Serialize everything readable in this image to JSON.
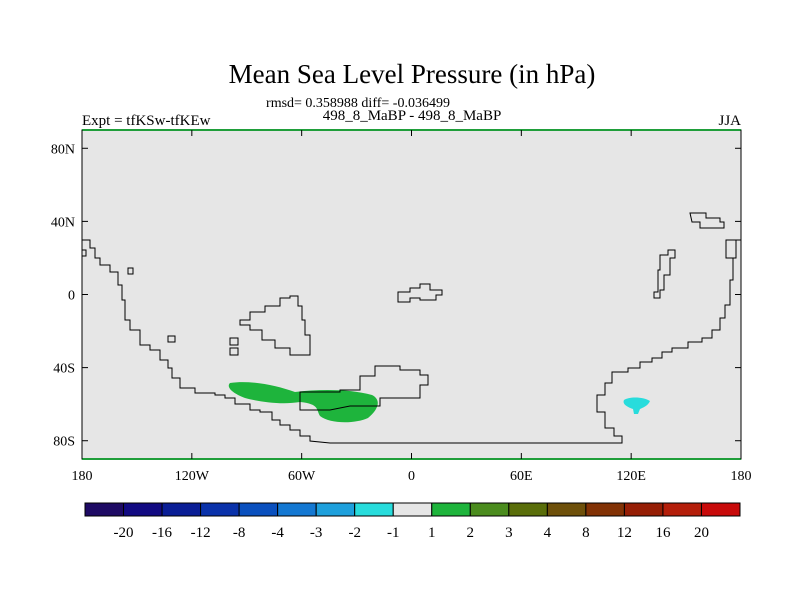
{
  "chart_data": {
    "type": "heatmap",
    "title": "Mean Sea Level Pressure (in hPa)",
    "stats_line": "rmsd= 0.358988 diff= -0.036499",
    "left_label": "Expt = tfKSw-tfKEw",
    "center_label": "498_8_MaBP - 498_8_MaBP",
    "right_label": "JJA",
    "x_axis": {
      "range_deg": [
        -180,
        180
      ],
      "ticks": [
        {
          "value": -180,
          "label": "180"
        },
        {
          "value": -120,
          "label": "120W"
        },
        {
          "value": -60,
          "label": "60W"
        },
        {
          "value": 0,
          "label": "0"
        },
        {
          "value": 60,
          "label": "60E"
        },
        {
          "value": 120,
          "label": "120E"
        },
        {
          "value": 180,
          "label": "180"
        }
      ]
    },
    "y_axis": {
      "range_deg": [
        -90,
        90
      ],
      "ticks": [
        {
          "value": 80,
          "label": "80N"
        },
        {
          "value": 40,
          "label": "40N"
        },
        {
          "value": 0,
          "label": "0"
        },
        {
          "value": -40,
          "label": "40S"
        },
        {
          "value": -80,
          "label": "80S"
        }
      ]
    },
    "background_color": "#e6e6e6",
    "colorbar": {
      "colors": [
        "#1e0a64",
        "#120a82",
        "#0a1e96",
        "#0a32aa",
        "#0a50be",
        "#1478d2",
        "#1ea0dc",
        "#28dcdc",
        "#e6e6e6",
        "#1eb43c",
        "#4b8c1e",
        "#5a6e0a",
        "#6e500a",
        "#823205",
        "#961e05",
        "#b41e0a",
        "#c80a0a"
      ],
      "labels": [
        "-20",
        "-16",
        "-12",
        "-8",
        "-4",
        "-3",
        "-2",
        "-1",
        "1",
        "2",
        "3",
        "4",
        "8",
        "12",
        "16",
        "20"
      ]
    },
    "anomalies": [
      {
        "name": "south-atlantic-positive",
        "class_color": "#1eb43c",
        "value_range": "1 to 2"
      },
      {
        "name": "indian-ocean-negative",
        "class_color": "#28dcdc",
        "value_range": "-2 to -1"
      }
    ]
  }
}
